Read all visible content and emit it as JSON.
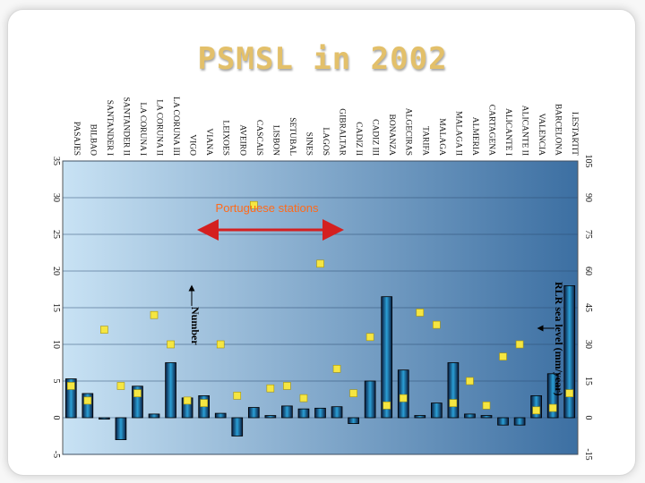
{
  "slide": {
    "title": "PSMSL in 2002"
  },
  "chart_data": {
    "type": "bar",
    "orientation": "rotated-90-clockwise",
    "title": "PSMSL in 2002",
    "categories": [
      "I.ESTARTIT",
      "BARCELONA",
      "VALENCIA",
      "ALICANTE II",
      "ALICANTE I",
      "CARTAGENA",
      "ALMERIA",
      "MALAGA II",
      "MALAGA",
      "TARIFA",
      "ALGECIRAS",
      "BONANZA",
      "CADIZ III",
      "CADIZ II",
      "GIBRALTAR",
      "LAGOS",
      "SINES",
      "SETUBAL",
      "LISBON",
      "CASCAIS",
      "AVEIRO",
      "LEIXOES",
      "VIANA",
      "VIGO",
      "LA CORUNA III",
      "LA CORUNA II",
      "LA CORUNA I",
      "SANTANDER II",
      "SANTANDER I",
      "BILBAO",
      "PASAJES"
    ],
    "series": [
      {
        "name": "Number",
        "axis": "bottom",
        "values": [
          18,
          6,
          3,
          -1,
          -1,
          0.3,
          0.5,
          7.5,
          2,
          0.3,
          6.5,
          16.5,
          5,
          -0.8,
          1.5,
          1.3,
          1.2,
          1.6,
          0.3,
          1.4,
          -2.5,
          0.6,
          3,
          2.7,
          7.5,
          0.5,
          4.3,
          -3,
          -0.2,
          3.3,
          5.3
        ]
      },
      {
        "name": "RLR sea level (mm/year)",
        "axis": "top",
        "values": [
          10,
          4,
          3,
          30,
          25,
          5,
          15,
          6,
          38,
          43,
          8,
          5,
          33,
          10,
          20,
          63,
          8,
          13,
          12,
          87,
          9,
          30,
          6,
          7,
          30,
          42,
          10,
          13,
          36,
          7,
          13
        ]
      }
    ],
    "axes": {
      "bottom": {
        "label": "Number",
        "ticks": [
          35,
          30,
          25,
          20,
          15,
          10,
          5,
          0,
          -5
        ],
        "range": [
          -5,
          35
        ]
      },
      "top": {
        "label": "RLR sea level (mm/year)",
        "ticks": [
          105,
          90,
          75,
          60,
          45,
          30,
          15,
          0,
          -15
        ],
        "range": [
          -15,
          105
        ]
      }
    },
    "annotations": [
      "Portuguese stations"
    ],
    "legend_labels": [
      "RLR sea level (mm/year)",
      "Number"
    ]
  }
}
